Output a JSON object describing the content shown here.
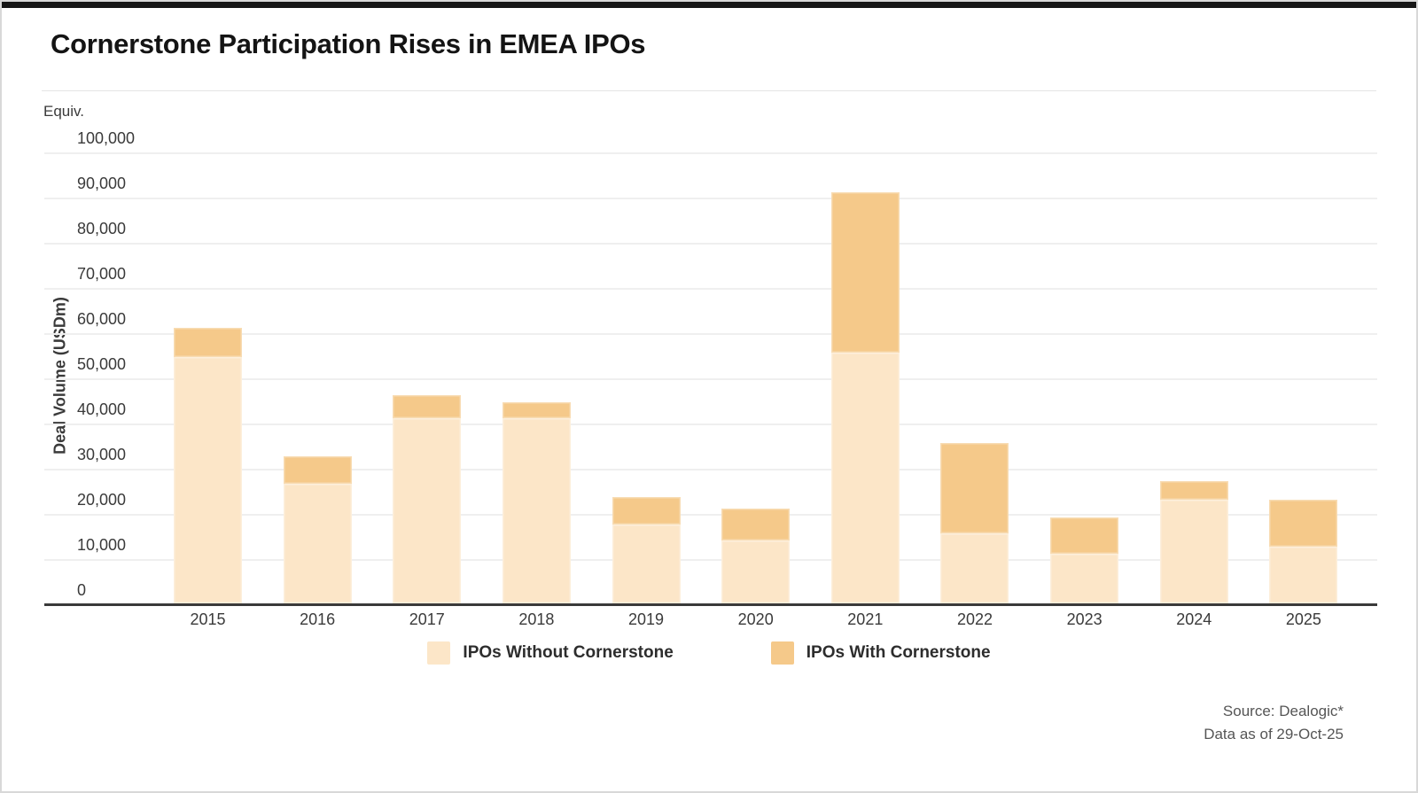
{
  "page": {
    "title": "Cornerstone Participation Rises in EMEA IPOs",
    "axis_unit_label": "Equiv.",
    "source_line1": "Source: Dealogic*",
    "source_line2": "Data as of 29-Oct-25"
  },
  "chart_data": {
    "type": "bar",
    "stacked": true,
    "title": "Cornerstone Participation Rises in EMEA IPOs",
    "categories": [
      "2015",
      "2016",
      "2017",
      "2018",
      "2019",
      "2020",
      "2021",
      "2022",
      "2023",
      "2024",
      "2025"
    ],
    "series": [
      {
        "name": "IPOs Without Cornerstone",
        "color": "#FCE6C8",
        "values": [
          54500,
          26500,
          41000,
          41000,
          17500,
          14000,
          55500,
          15500,
          11000,
          23000,
          12500
        ]
      },
      {
        "name": "IPOs With Cornerstone",
        "color": "#F5C98A",
        "values": [
          6500,
          6000,
          5000,
          3500,
          6000,
          7000,
          35500,
          20000,
          8000,
          4000,
          10500
        ]
      }
    ],
    "totals": [
      61000,
      32500,
      46000,
      44500,
      23500,
      21000,
      91000,
      35500,
      19000,
      27000,
      23000
    ],
    "xlabel": "",
    "ylabel": "Deal Volume (USDm)",
    "ylim": [
      0,
      100000
    ],
    "ytick_step": 10000,
    "ytick_labels": [
      "0",
      "10,000",
      "20,000",
      "30,000",
      "40,000",
      "50,000",
      "60,000",
      "70,000",
      "80,000",
      "90,000",
      "100,000"
    ],
    "grid": true,
    "legend_position": "bottom",
    "axis_color": "#3a3a3a",
    "gridline_color": "#efefef"
  }
}
